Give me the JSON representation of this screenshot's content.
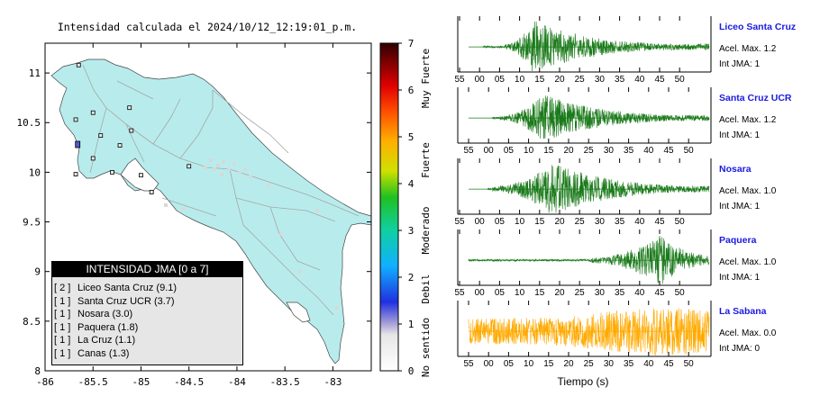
{
  "map": {
    "title": "Intensidad calculada el 2024/10/12_12:19:01_p.m.",
    "lon_ticks": [
      "-86",
      "-85.5",
      "-85",
      "-84.5",
      "-84",
      "-83.5",
      "-83"
    ],
    "lat_ticks": [
      "11",
      "10.5",
      "10",
      "9.5",
      "9",
      "8.5",
      "8"
    ],
    "colors": {
      "land": "#b8ecec",
      "sea": "#ffffff",
      "roads": "#a0a0a0"
    }
  },
  "legend": {
    "title": "INTENSIDAD JMA [0 a 7]",
    "rows": [
      {
        "level": "[ 2 ]",
        "station": "Liceo Santa Cruz (9.1)"
      },
      {
        "level": "[ 1 ]",
        "station": "Santa Cruz UCR (3.7)"
      },
      {
        "level": "[ 1 ]",
        "station": "Nosara (3.0)"
      },
      {
        "level": "[ 1 ]",
        "station": "Paquera (1.8)"
      },
      {
        "level": "[ 1 ]",
        "station": "La Cruz (1.1)"
      },
      {
        "level": "[ 1 ]",
        "station": "Canas (1.3)"
      }
    ]
  },
  "colorbar": {
    "ticks": [
      "0",
      "1",
      "2",
      "3",
      "4",
      "5",
      "6",
      "7"
    ],
    "categories": [
      "No sentido",
      "Debil",
      "Moderado",
      "Fuerte",
      "Muy Fuerte"
    ]
  },
  "chart_data": [
    {
      "type": "map",
      "title": "Intensidad calculada el 2024/10/12_12:19:01_p.m.",
      "xlim": [
        -86,
        -82.6
      ],
      "ylim": [
        8,
        11.3
      ],
      "stations": [
        {
          "lon": -85.65,
          "lat": 11.08,
          "intensity": 0
        },
        {
          "lon": -85.12,
          "lat": 10.65,
          "intensity": 0
        },
        {
          "lon": -85.68,
          "lat": 10.53,
          "intensity": 0
        },
        {
          "lon": -85.5,
          "lat": 10.6,
          "intensity": 0
        },
        {
          "lon": -85.1,
          "lat": 10.42,
          "intensity": 0
        },
        {
          "lon": -85.42,
          "lat": 10.37,
          "intensity": 0
        },
        {
          "lon": -85.66,
          "lat": 10.28,
          "intensity": 2
        },
        {
          "lon": -85.22,
          "lat": 10.27,
          "intensity": 0
        },
        {
          "lon": -85.5,
          "lat": 10.14,
          "intensity": 0
        },
        {
          "lon": -85.3,
          "lat": 10.0,
          "intensity": 0
        },
        {
          "lon": -85.68,
          "lat": 9.98,
          "intensity": 0
        },
        {
          "lon": -85.0,
          "lat": 9.97,
          "intensity": 0
        },
        {
          "lon": -84.5,
          "lat": 10.06,
          "intensity": 0
        },
        {
          "lon": -84.89,
          "lat": 9.8,
          "intensity": 0
        }
      ]
    },
    {
      "type": "line",
      "xlabel": "Tiempo (s)",
      "x_ticks": [
        "55",
        "00",
        "05",
        "10",
        "15",
        "20",
        "25",
        "30",
        "35",
        "40",
        "45",
        "50"
      ],
      "series": [
        {
          "name": "Liceo Santa Cruz",
          "accel_max": "Acel. Max. 1.2",
          "jma": "Int JMA: 1",
          "color": "#1a7a1a",
          "onset": 0.15,
          "peak_at": 0.27,
          "peak": 1.0,
          "start": 0.06,
          "end": 1.0
        },
        {
          "name": "Santa Cruz UCR",
          "accel_max": "Acel. Max. 1.2",
          "jma": "Int JMA: 1",
          "color": "#1a7a1a",
          "onset": 0.13,
          "peak_at": 0.31,
          "peak": 0.9,
          "start": 0.1,
          "end": 1.0
        },
        {
          "name": "Nosara",
          "accel_max": "Acel. Max. 1.0",
          "jma": "Int JMA: 1",
          "color": "#1a7a1a",
          "onset": 0.1,
          "peak_at": 0.35,
          "peak": 1.0,
          "start": 0.08,
          "end": 1.0
        },
        {
          "name": "Paquera",
          "accel_max": "Acel. Max. 1.0",
          "jma": "Int JMA: 1",
          "color": "#1a7a1a",
          "onset": 0.5,
          "peak_at": 0.8,
          "peak": 0.95,
          "start": 0.0,
          "end": 1.0
        },
        {
          "name": "La Sabana",
          "accel_max": "Acel. Max. 0.0",
          "jma": "Int JMA: 0",
          "color": "#ffaa00",
          "onset": 0.0,
          "peak_at": 0.8,
          "peak": 0.9,
          "start": 0.0,
          "end": 1.0
        }
      ]
    }
  ]
}
